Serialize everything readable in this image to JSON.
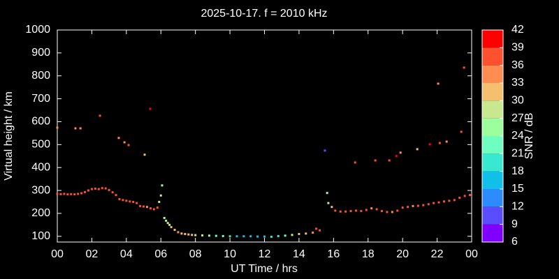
{
  "chart_data": {
    "type": "scatter",
    "title": "2025-10-17. f = 2010 kHz",
    "xlabel": "UT Time / hrs",
    "ylabel": "Virtual height / km",
    "xlim": [
      0,
      24
    ],
    "xticks": [
      {
        "value": 0,
        "label": "00"
      },
      {
        "value": 2,
        "label": "02"
      },
      {
        "value": 4,
        "label": "04"
      },
      {
        "value": 6,
        "label": "06"
      },
      {
        "value": 8,
        "label": "08"
      },
      10,
      12,
      14,
      16,
      18,
      20,
      22,
      {
        "value": 24,
        "label": "00"
      }
    ],
    "ylim": [
      75,
      1000
    ],
    "yticks": [
      100,
      200,
      300,
      400,
      500,
      600,
      700,
      800,
      900,
      1000
    ],
    "x": [
      0.0,
      0.2,
      0.4,
      0.6,
      0.8,
      1.0,
      1.2,
      1.4,
      1.6,
      1.8,
      2.0,
      2.2,
      2.4,
      2.6,
      2.8,
      3.0,
      3.2,
      3.4,
      3.6,
      3.8,
      4.0,
      4.2,
      4.4,
      4.6,
      4.8,
      5.0,
      5.2,
      5.4,
      5.6,
      5.8,
      5.9,
      6.0,
      6.2,
      6.3,
      6.4,
      6.5,
      6.6,
      6.8,
      7.0,
      7.2,
      7.4,
      7.6,
      7.8,
      8.0,
      8.4,
      8.8,
      9.2,
      9.6,
      10.0,
      10.4,
      10.8,
      11.2,
      11.6,
      12.0,
      12.4,
      12.8,
      13.2,
      13.6,
      14.0,
      14.4,
      14.8,
      15.0,
      15.2,
      15.7,
      15.9,
      16.1,
      16.4,
      16.7,
      17.0,
      17.3,
      17.6,
      17.9,
      18.2,
      18.5,
      18.8,
      19.1,
      19.4,
      19.7,
      20.0,
      20.3,
      20.6,
      20.9,
      21.2,
      21.5,
      21.8,
      22.1,
      22.4,
      22.7,
      23.0,
      23.3,
      23.6,
      23.9,
      0.0,
      1.05,
      1.34,
      2.47,
      3.56,
      3.89,
      4.13,
      5.06,
      5.38,
      6.07,
      15.5,
      15.63,
      17.25,
      18.42,
      19.23,
      19.64,
      19.88,
      20.85,
      21.58,
      22.06,
      22.15,
      22.55,
      23.4,
      23.56
    ],
    "values": [
      285,
      284,
      285,
      283,
      284,
      283,
      285,
      288,
      293,
      300,
      306,
      308,
      306,
      310,
      309,
      302,
      292,
      280,
      262,
      258,
      255,
      252,
      250,
      245,
      232,
      230,
      228,
      222,
      218,
      225,
      250,
      278,
      180,
      168,
      158,
      150,
      140,
      128,
      118,
      112,
      110,
      108,
      106,
      105,
      104,
      103,
      102,
      101,
      100,
      100,
      100,
      100,
      99,
      99,
      98,
      101,
      103,
      106,
      110,
      112,
      116,
      133,
      126,
      245,
      228,
      212,
      208,
      208,
      210,
      212,
      210,
      215,
      222,
      218,
      210,
      206,
      206,
      212,
      225,
      228,
      232,
      233,
      236,
      240,
      245,
      248,
      252,
      255,
      258,
      268,
      276,
      280,
      574,
      571,
      571,
      626,
      529,
      510,
      498,
      456,
      656,
      322,
      474,
      289,
      422,
      431,
      431,
      450,
      465,
      480,
      501,
      766,
      507,
      513,
      556,
      836
    ],
    "snr": [
      37,
      37,
      37,
      36,
      37,
      37,
      37,
      37,
      37,
      38,
      37,
      37,
      38,
      37,
      37,
      37,
      37,
      37,
      38,
      38,
      38,
      38,
      38,
      38,
      37,
      36,
      35,
      37,
      38,
      36,
      29,
      27,
      25,
      26,
      27,
      29,
      30,
      31,
      33,
      32,
      32,
      31,
      30,
      29,
      28,
      25,
      23,
      21,
      18,
      17,
      17,
      17,
      16,
      17,
      18,
      20,
      23,
      27,
      30,
      31,
      33,
      37,
      36,
      27,
      31,
      36,
      37,
      36,
      36,
      36,
      37,
      36,
      35,
      36,
      36,
      36,
      35,
      36,
      36,
      36,
      35,
      36,
      36,
      38,
      38,
      37,
      37,
      37,
      36,
      36,
      36,
      37,
      35,
      35,
      35,
      38,
      35,
      35,
      37,
      32,
      41,
      25,
      10,
      24,
      37,
      37,
      38,
      40,
      35,
      32,
      40,
      35,
      38,
      35,
      37,
      37
    ],
    "colorbar": {
      "label": "SNR / dB",
      "ticks": [
        6,
        9,
        12,
        15,
        18,
        21,
        24,
        27,
        30,
        33,
        36,
        39,
        42
      ],
      "colors": [
        "#8000ff",
        "#5a4cff",
        "#2c8cff",
        "#10c0e8",
        "#38e8d0",
        "#6effc0",
        "#9cff9c",
        "#c8e890",
        "#f4c070",
        "#ff8c50",
        "#ff5030",
        "#ff0000"
      ]
    }
  }
}
